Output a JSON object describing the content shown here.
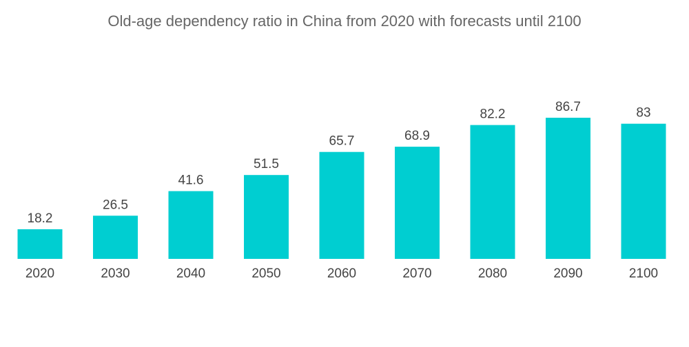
{
  "chart_data": {
    "type": "bar",
    "title": "Old-age dependency ratio in China from 2020 with forecasts until 2100",
    "categories": [
      "2020",
      "2030",
      "2040",
      "2050",
      "2060",
      "2070",
      "2080",
      "2090",
      "2100"
    ],
    "values": [
      18.2,
      26.5,
      41.6,
      51.5,
      65.7,
      68.9,
      82.2,
      86.7,
      83
    ],
    "value_labels": [
      "18.2",
      "26.5",
      "41.6",
      "51.5",
      "65.7",
      "68.9",
      "82.2",
      "86.7",
      "83"
    ],
    "xlabel": "",
    "ylabel": "",
    "ylim": [
      0,
      86.7
    ],
    "grid": false,
    "legend": "none",
    "bar_color": "#00CED1"
  }
}
